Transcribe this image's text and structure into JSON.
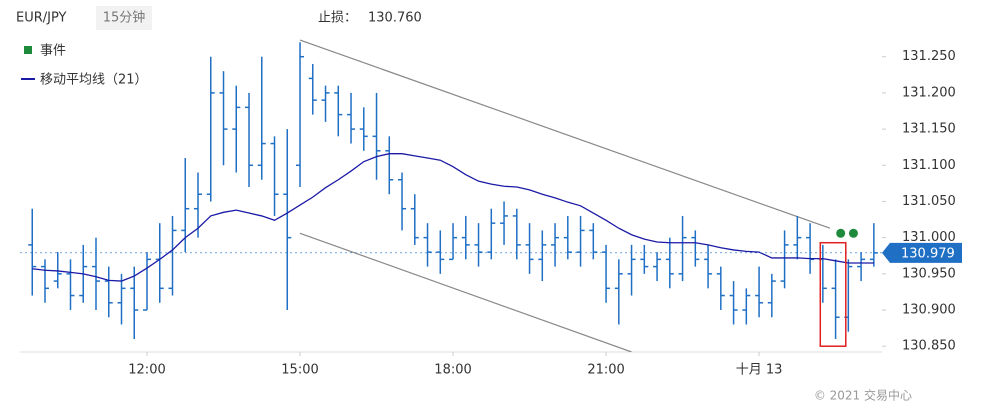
{
  "header": {
    "symbol": "EUR/JPY",
    "interval": "15分钟",
    "stop_loss_label": "止损：",
    "stop_loss": {
      "value": 130.76,
      "label": "130.760"
    }
  },
  "footer": "© 2021 交易中心",
  "chart_data": {
    "type": "ohlc",
    "xlim": [
      9.51,
      26.41
    ],
    "ylim": [
      130.842,
      131.28
    ],
    "xticks": [
      {
        "value": 12,
        "label": "12:00"
      },
      {
        "value": 15,
        "label": "15:00"
      },
      {
        "value": 18,
        "label": "18:00"
      },
      {
        "value": 21,
        "label": "21:00"
      },
      {
        "value": 24,
        "label": "十月 13"
      }
    ],
    "yticks": [
      {
        "value": 130.85,
        "label": "130.850"
      },
      {
        "value": 130.9,
        "label": "130.900"
      },
      {
        "value": 130.95,
        "label": "130.950"
      },
      {
        "value": 131,
        "label": "131.000"
      },
      {
        "value": 131.05,
        "label": "131.050"
      },
      {
        "value": 131.1,
        "label": "131.100"
      },
      {
        "value": 131.15,
        "label": "131.150"
      },
      {
        "value": 131.2,
        "label": "131.200"
      },
      {
        "value": 131.25,
        "label": "131.250"
      }
    ],
    "color": "#1f6fc5",
    "x": [
      9.75,
      10,
      10.25,
      10.5,
      10.75,
      11,
      11.25,
      11.5,
      11.75,
      12,
      12.25,
      12.5,
      12.75,
      13,
      13.25,
      13.5,
      13.75,
      14,
      14.25,
      14.5,
      14.75,
      15,
      15.25,
      15.5,
      15.75,
      16,
      16.25,
      16.5,
      16.75,
      17,
      17.25,
      17.5,
      17.75,
      18,
      18.25,
      18.5,
      18.75,
      19,
      19.25,
      19.5,
      19.75,
      20,
      20.25,
      20.5,
      20.75,
      21,
      21.25,
      21.5,
      21.75,
      22,
      22.25,
      22.5,
      22.75,
      23,
      23.25,
      23.5,
      23.75,
      24,
      24.25,
      24.5,
      24.75,
      25,
      25.25,
      25.5,
      25.75,
      26,
      26.25
    ],
    "open": [
      130.99,
      130.96,
      130.94,
      130.95,
      130.92,
      130.96,
      130.94,
      130.91,
      130.93,
      130.9,
      130.97,
      130.93,
      131.01,
      131.04,
      131.06,
      131.2,
      131.15,
      131.18,
      131.1,
      131.13,
      131.06,
      131.1,
      131.22,
      131.19,
      131.2,
      131.17,
      131.15,
      131.14,
      131.12,
      131.08,
      131.04,
      131,
      130.98,
      130.97,
      131,
      130.99,
      130.98,
      131.02,
      131.03,
      130.99,
      130.97,
      130.99,
      131,
      130.98,
      131.01,
      130.98,
      130.93,
      130.95,
      130.97,
      130.96,
      130.97,
      130.95,
      131,
      130.97,
      130.95,
      130.92,
      130.9,
      130.92,
      130.91,
      130.94,
      130.99,
      131,
      130.97,
      130.93,
      130.89,
      130.96,
      130.97
    ],
    "high": [
      131.04,
      130.97,
      130.98,
      130.97,
      130.99,
      131,
      130.96,
      130.95,
      130.96,
      130.98,
      131.02,
      131.03,
      131.11,
      131.09,
      131.25,
      131.23,
      131.21,
      131.2,
      131.25,
      131.14,
      131.15,
      131.27,
      131.24,
      131.21,
      131.21,
      131.2,
      131.18,
      131.2,
      131.14,
      131.09,
      131.06,
      131.02,
      131.01,
      131.02,
      131.03,
      131.02,
      131.04,
      131.05,
      131.04,
      131.02,
      131.01,
      131.02,
      131.03,
      131.03,
      131.02,
      130.99,
      130.97,
      130.99,
      130.99,
      130.98,
      131,
      131.03,
      131.01,
      130.99,
      130.96,
      130.94,
      130.93,
      130.96,
      130.95,
      131.01,
      131.03,
      131.02,
      130.99,
      130.97,
      130.97,
      130.98,
      131.02
    ],
    "low": [
      130.92,
      130.91,
      130.93,
      130.9,
      130.91,
      130.9,
      130.89,
      130.88,
      130.86,
      130.9,
      130.91,
      130.92,
      130.98,
      131,
      131.05,
      131.1,
      131.09,
      131.07,
      131.08,
      131.03,
      130.9,
      131.07,
      131.17,
      131.16,
      131.14,
      131.13,
      131.12,
      131.08,
      131.06,
      131.01,
      130.99,
      130.96,
      130.95,
      130.97,
      130.97,
      130.96,
      130.97,
      130.99,
      130.97,
      130.95,
      130.94,
      130.96,
      130.97,
      130.96,
      130.97,
      130.91,
      130.88,
      130.92,
      130.95,
      130.94,
      130.93,
      130.94,
      130.96,
      130.93,
      130.9,
      130.88,
      130.88,
      130.89,
      130.89,
      130.93,
      130.97,
      130.95,
      130.91,
      130.86,
      130.87,
      130.94,
      130.96
    ],
    "close": [
      130.96,
      130.93,
      130.95,
      130.92,
      130.96,
      130.94,
      130.91,
      130.93,
      130.9,
      130.97,
      130.93,
      131.01,
      131.04,
      131.06,
      131.2,
      131.15,
      131.18,
      131.1,
      131.13,
      131.06,
      131,
      131.25,
      131.19,
      131.2,
      131.17,
      131.15,
      131.14,
      131.12,
      131.08,
      131.04,
      131,
      130.98,
      130.97,
      131,
      130.99,
      130.98,
      131.02,
      131.03,
      130.99,
      130.97,
      130.99,
      131,
      130.98,
      131.01,
      130.98,
      130.93,
      130.95,
      130.97,
      130.96,
      130.97,
      130.95,
      131,
      130.97,
      130.95,
      130.92,
      130.9,
      130.92,
      130.91,
      130.94,
      130.99,
      131,
      130.97,
      130.93,
      130.89,
      130.96,
      130.97,
      130.979
    ],
    "moving_average": {
      "name": "移动平均线（21）",
      "color": "#1a1aa6",
      "values": [
        130.957,
        130.955,
        130.954,
        130.952,
        130.95,
        130.946,
        130.941,
        130.94,
        130.947,
        130.958,
        130.97,
        130.983,
        131,
        131.013,
        131.03,
        131.035,
        131.038,
        131.034,
        131.03,
        131.024,
        131.034,
        131.045,
        131.056,
        131.069,
        131.08,
        131.092,
        131.105,
        131.112,
        131.116,
        131.116,
        131.113,
        131.11,
        131.107,
        131.098,
        131.087,
        131.078,
        131.074,
        131.071,
        131.07,
        131.066,
        131.06,
        131.055,
        131.049,
        131.044,
        131.034,
        131.024,
        131.013,
        131.004,
        130.998,
        130.994,
        130.993,
        130.993,
        130.993,
        130.99,
        130.986,
        130.983,
        130.981,
        130.98,
        130.972,
        130.972,
        130.972,
        130.971,
        130.971,
        130.968,
        130.965,
        130.965,
        130.965
      ]
    },
    "events": {
      "name": "事件",
      "color": "#1e8a3c",
      "x": [
        25.6,
        25.85
      ],
      "values": [
        131.006,
        131.006
      ]
    },
    "trend_lines": [
      {
        "x": [
          15,
          25.39
        ],
        "values": [
          131.273,
          131.013
        ]
      },
      {
        "x": [
          15,
          21.5
        ],
        "values": [
          131.006,
          130.842
        ]
      }
    ],
    "highlight": {
      "x": [
        25.2,
        25.7
      ],
      "values": [
        130.85,
        130.993
      ]
    },
    "last_price": 130.979
  }
}
